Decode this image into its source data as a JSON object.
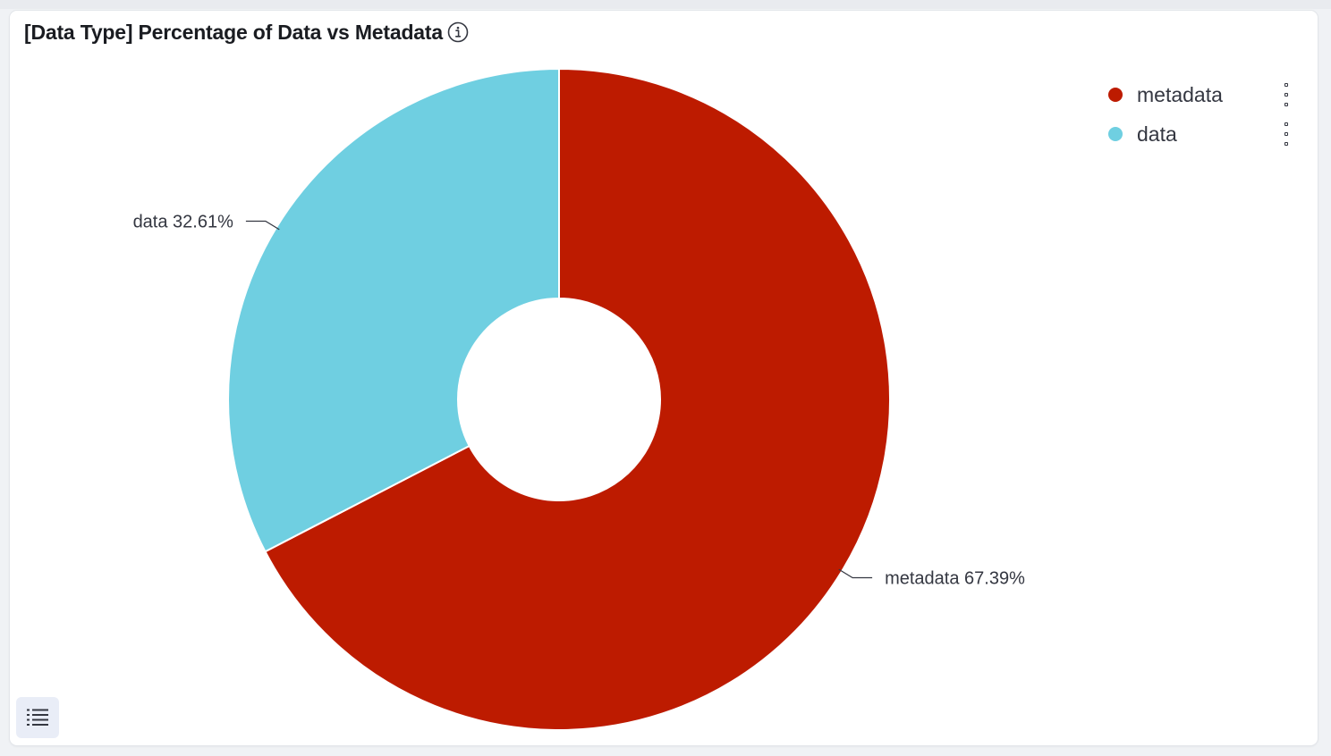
{
  "panel": {
    "title": "[Data Type] Percentage of Data vs Metadata"
  },
  "icons": {
    "info": "info-icon",
    "legend_menu": "vertical-dots-icon",
    "list_toggle": "list-icon"
  },
  "colors": {
    "metadata": "#bd1b00",
    "data": "#6fcfe1"
  },
  "chart_data": {
    "type": "pie",
    "donut": true,
    "title": "[Data Type] Percentage of Data vs Metadata",
    "slices": [
      {
        "label": "metadata",
        "value": 67.39,
        "display": "67.39%",
        "color": "#bd1b00"
      },
      {
        "label": "data",
        "value": 32.61,
        "display": "32.61%",
        "color": "#6fcfe1"
      }
    ],
    "legend_position": "top-right"
  },
  "legend": {
    "items": [
      {
        "label": "metadata",
        "color": "#bd1b00"
      },
      {
        "label": "data",
        "color": "#6fcfe1"
      }
    ]
  }
}
